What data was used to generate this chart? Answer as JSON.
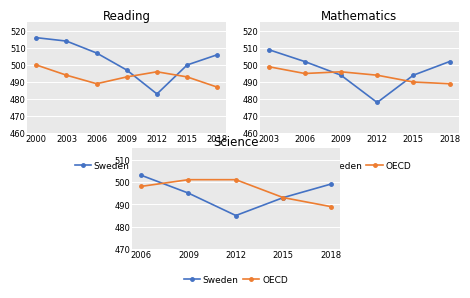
{
  "reading": {
    "title": "Reading",
    "sweden_x": [
      2000,
      2003,
      2006,
      2009,
      2012,
      2015,
      2018
    ],
    "sweden_y": [
      516,
      514,
      507,
      497,
      483,
      500,
      506
    ],
    "oecd_x": [
      2000,
      2003,
      2006,
      2009,
      2012,
      2015,
      2018
    ],
    "oecd_y": [
      500,
      494,
      489,
      493,
      496,
      493,
      487
    ],
    "ylim": [
      460,
      525
    ],
    "yticks": [
      460,
      470,
      480,
      490,
      500,
      510,
      520
    ]
  },
  "mathematics": {
    "title": "Mathematics",
    "sweden_x": [
      2003,
      2006,
      2009,
      2012,
      2015,
      2018
    ],
    "sweden_y": [
      509,
      502,
      494,
      478,
      494,
      502
    ],
    "oecd_x": [
      2003,
      2006,
      2009,
      2012,
      2015,
      2018
    ],
    "oecd_y": [
      499,
      495,
      496,
      494,
      490,
      489
    ],
    "ylim": [
      460,
      525
    ],
    "yticks": [
      460,
      470,
      480,
      490,
      500,
      510,
      520
    ]
  },
  "science": {
    "title": "Science",
    "sweden_x": [
      2006,
      2009,
      2012,
      2015,
      2018
    ],
    "sweden_y": [
      503,
      495,
      485,
      493,
      499
    ],
    "oecd_x": [
      2006,
      2009,
      2012,
      2015,
      2018
    ],
    "oecd_y": [
      498,
      501,
      501,
      493,
      489
    ],
    "ylim": [
      470,
      515
    ],
    "yticks": [
      470,
      480,
      490,
      500,
      510
    ]
  },
  "sweden_color": "#4472c4",
  "oecd_color": "#ed7d31",
  "sweden_label": "Sweden",
  "oecd_label": "OECD",
  "line_width": 1.2,
  "marker": "o",
  "marker_size": 2.5,
  "title_fontsize": 8.5,
  "tick_fontsize": 6,
  "legend_fontsize": 6.5,
  "bg_color": "#e9e9e9"
}
